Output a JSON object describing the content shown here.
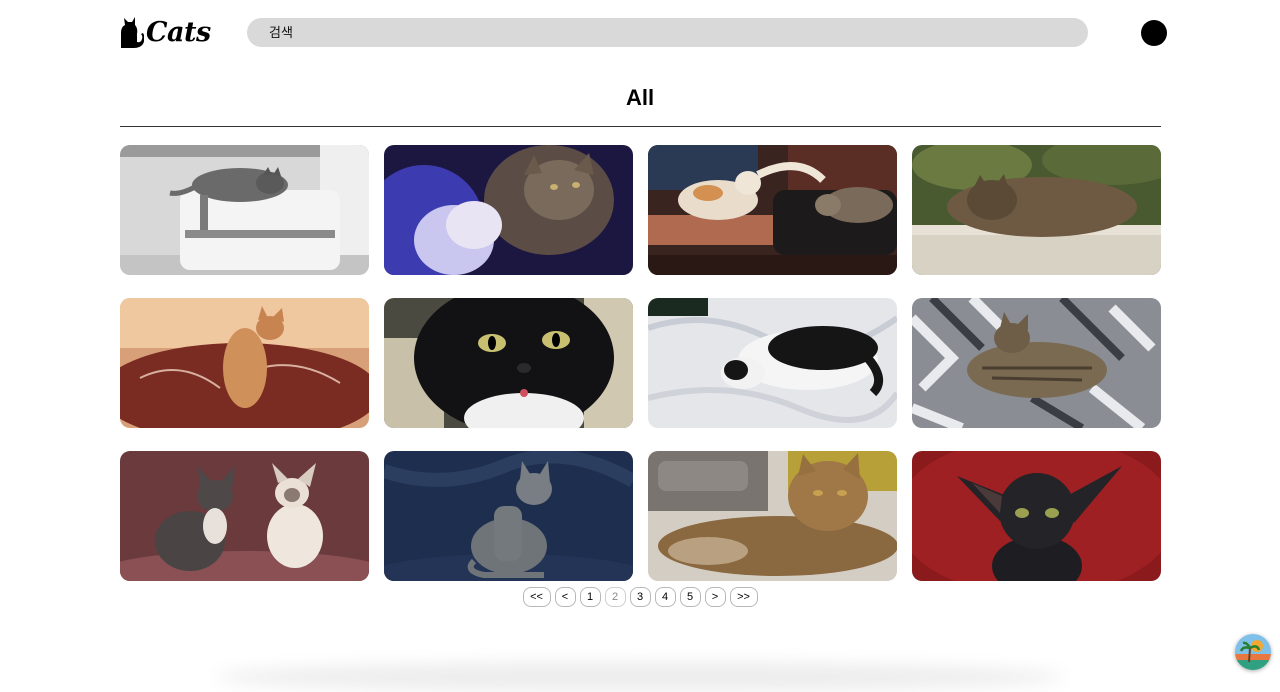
{
  "header": {
    "logo_text": "Cats",
    "search_placeholder": "검색"
  },
  "page": {
    "title": "All"
  },
  "gallery": [
    {
      "name": "cat-photo-1",
      "description": "tabby cat lying on white chair"
    },
    {
      "name": "cat-photo-2",
      "description": "two cats nuzzling on blue blanket"
    },
    {
      "name": "cat-photo-3",
      "description": "orange cat and tabby on leather chair"
    },
    {
      "name": "cat-photo-4",
      "description": "tabby sleeping on radiator"
    },
    {
      "name": "cat-photo-5",
      "description": "ginger cat on red blanket"
    },
    {
      "name": "cat-photo-6",
      "description": "black and white cat close up"
    },
    {
      "name": "cat-photo-7",
      "description": "black and white cat sleeping on sheets"
    },
    {
      "name": "cat-photo-8",
      "description": "tabby cat on fur blanket"
    },
    {
      "name": "cat-photo-9",
      "description": "two hairless-looking cats sitting"
    },
    {
      "name": "cat-photo-10",
      "description": "grey cat on navy backdrop"
    },
    {
      "name": "cat-photo-11",
      "description": "long-haired tabby lying on floor"
    },
    {
      "name": "cat-photo-12",
      "description": "black oriental cat on red backdrop"
    }
  ],
  "pagination": {
    "first": "<<",
    "prev": "<",
    "pages": [
      "1",
      "2",
      "3",
      "4",
      "5"
    ],
    "current": "2",
    "next": ">",
    "last": ">>"
  },
  "colors": {
    "search_bg": "#d9d9d9",
    "avatar": "#000000"
  }
}
